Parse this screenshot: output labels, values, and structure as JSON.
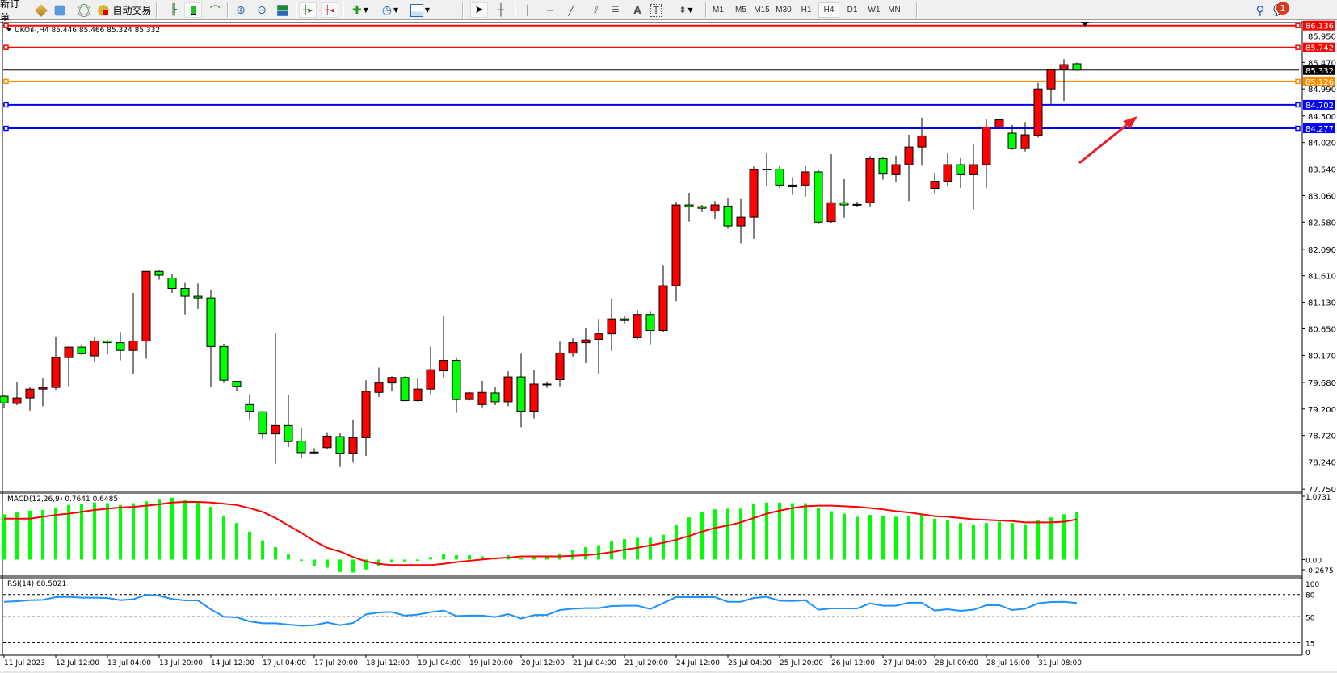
{
  "toolbar": {
    "new_order": "新订单",
    "auto_trading": "自动交易",
    "timeframes": [
      "M1",
      "M5",
      "M15",
      "M30",
      "H1",
      "H4",
      "D1",
      "W1",
      "MN"
    ],
    "active_timeframe": "H4",
    "notification_count": "1",
    "icons": [
      "market-watch-icon",
      "navigator-icon",
      "signals-icon",
      "auto-trading-icon",
      "bar-chart-icon",
      "candlestick-icon",
      "line-chart-icon",
      "zoom-in-icon",
      "zoom-out-icon",
      "tile-windows-icon",
      "auto-scroll-icon",
      "chart-shift-icon",
      "indicators-icon",
      "periods-icon",
      "templates-icon",
      "cursor-icon",
      "crosshair-icon",
      "vertical-line-icon",
      "horizontal-line-icon",
      "trendline-icon",
      "equidistant-channel-icon",
      "fibonacci-icon",
      "text-icon",
      "text-label-icon",
      "arrows-icon",
      "search-icon",
      "notification-icon"
    ]
  },
  "chart": {
    "symbol_header": "UKOil-,H4  85.446 85.466 85.324 85.332",
    "bull_color": "#ff0000",
    "bear_color": "#00ff00",
    "price_levels": [
      {
        "price": "86.136",
        "color": "#ff0000",
        "kind": "level"
      },
      {
        "price": "85.742",
        "color": "#ff0000",
        "kind": "level"
      },
      {
        "price": "85.332",
        "color": "#000000",
        "kind": "bid"
      },
      {
        "price": "85.126",
        "color": "#ff8c00",
        "kind": "level"
      },
      {
        "price": "84.702",
        "color": "#0000ff",
        "kind": "level"
      },
      {
        "price": "84.277",
        "color": "#0000ff",
        "kind": "level"
      }
    ],
    "arrow_color": "#e8202a"
  },
  "chart_data": [
    {
      "type": "candlestick",
      "title": "UKOil-,H4",
      "ohlc_last": {
        "open": 85.446,
        "high": 85.466,
        "low": 85.324,
        "close": 85.332
      },
      "y_ticks": [
        "85.950",
        "85.470",
        "84.990",
        "84.500",
        "84.020",
        "83.540",
        "83.060",
        "82.580",
        "82.090",
        "81.610",
        "81.130",
        "80.650",
        "80.170",
        "79.680",
        "79.200",
        "78.720",
        "78.240",
        "77.750"
      ],
      "ylim": [
        77.75,
        86.136
      ],
      "x_tick_labels": [
        "11 Jul 2023",
        "12 Jul 12:00",
        "13 Jul 04:00",
        "13 Jul 20:00",
        "14 Jul 12:00",
        "17 Jul 04:00",
        "17 Jul 20:00",
        "18 Jul 12:00",
        "19 Jul 04:00",
        "19 Jul 20:00",
        "20 Jul 12:00",
        "21 Jul 04:00",
        "21 Jul 20:00",
        "24 Jul 12:00",
        "25 Jul 04:00",
        "25 Jul 20:00",
        "26 Jul 12:00",
        "27 Jul 04:00",
        "28 Jul 00:00",
        "28 Jul 16:00",
        "31 Jul 08:00"
      ],
      "candles": [
        [
          79.43,
          79.45,
          79.22,
          79.31
        ],
        [
          79.3,
          79.68,
          79.27,
          79.4
        ],
        [
          79.4,
          79.59,
          79.17,
          79.56
        ],
        [
          79.56,
          79.75,
          79.25,
          79.59
        ],
        [
          79.59,
          80.5,
          79.55,
          80.13
        ],
        [
          80.13,
          80.33,
          79.61,
          80.32
        ],
        [
          80.32,
          80.35,
          80.18,
          80.2
        ],
        [
          80.16,
          80.5,
          80.05,
          80.43
        ],
        [
          80.43,
          80.45,
          80.19,
          80.4
        ],
        [
          80.4,
          80.58,
          80.08,
          80.26
        ],
        [
          80.26,
          81.3,
          79.84,
          80.43
        ],
        [
          80.43,
          81.7,
          80.11,
          81.69
        ],
        [
          81.69,
          81.71,
          81.54,
          81.62
        ],
        [
          81.57,
          81.65,
          81.3,
          81.38
        ],
        [
          81.38,
          81.48,
          80.91,
          81.24
        ],
        [
          81.24,
          81.47,
          81.01,
          81.21
        ],
        [
          81.21,
          81.36,
          79.6,
          80.33
        ],
        [
          80.33,
          80.38,
          79.67,
          79.72
        ],
        [
          79.7,
          79.7,
          79.52,
          79.61
        ],
        [
          79.28,
          79.47,
          79.01,
          79.16
        ],
        [
          79.15,
          79.16,
          78.66,
          78.75
        ],
        [
          78.75,
          80.57,
          78.21,
          78.9
        ],
        [
          78.9,
          79.45,
          78.51,
          78.61
        ],
        [
          78.62,
          78.86,
          78.32,
          78.41
        ],
        [
          78.42,
          78.49,
          78.38,
          78.42
        ],
        [
          78.5,
          78.78,
          78.48,
          78.71
        ],
        [
          78.7,
          78.77,
          78.15,
          78.4
        ],
        [
          78.4,
          79.01,
          78.23,
          78.68
        ],
        [
          78.68,
          79.72,
          78.35,
          79.52
        ],
        [
          79.5,
          79.95,
          79.42,
          79.67
        ],
        [
          79.67,
          79.79,
          79.53,
          79.77
        ],
        [
          79.77,
          79.79,
          79.34,
          79.35
        ],
        [
          79.35,
          79.75,
          79.33,
          79.56
        ],
        [
          79.56,
          80.33,
          79.47,
          79.91
        ],
        [
          79.89,
          80.89,
          79.77,
          80.08
        ],
        [
          80.08,
          80.12,
          79.13,
          79.37
        ],
        [
          79.37,
          79.51,
          79.35,
          79.49
        ],
        [
          79.28,
          79.71,
          79.23,
          79.5
        ],
        [
          79.49,
          79.59,
          79.27,
          79.33
        ],
        [
          79.33,
          79.88,
          79.25,
          79.78
        ],
        [
          79.78,
          80.2,
          78.87,
          79.16
        ],
        [
          79.16,
          79.9,
          79.03,
          79.65
        ],
        [
          79.64,
          79.7,
          79.58,
          79.65
        ],
        [
          79.73,
          80.42,
          79.61,
          80.21
        ],
        [
          80.21,
          80.48,
          80.15,
          80.4
        ],
        [
          80.4,
          80.66,
          80.03,
          80.45
        ],
        [
          80.46,
          80.83,
          79.83,
          80.56
        ],
        [
          80.56,
          81.2,
          80.25,
          80.83
        ],
        [
          80.83,
          80.89,
          80.75,
          80.8
        ],
        [
          80.49,
          80.99,
          80.46,
          80.91
        ],
        [
          80.91,
          80.96,
          80.37,
          80.62
        ],
        [
          80.62,
          81.79,
          80.6,
          81.43
        ],
        [
          81.43,
          82.95,
          81.15,
          82.89
        ],
        [
          82.89,
          83.11,
          82.59,
          82.86
        ],
        [
          82.86,
          82.89,
          82.76,
          82.83
        ],
        [
          82.78,
          82.96,
          82.63,
          82.89
        ],
        [
          82.87,
          83.02,
          82.46,
          82.51
        ],
        [
          82.51,
          83.01,
          82.2,
          82.67
        ],
        [
          82.67,
          83.59,
          82.28,
          83.53
        ],
        [
          83.54,
          83.83,
          83.23,
          83.54
        ],
        [
          83.54,
          83.59,
          83.2,
          83.25
        ],
        [
          83.22,
          83.39,
          83.07,
          83.25
        ],
        [
          83.25,
          83.59,
          83.04,
          83.49
        ],
        [
          83.49,
          83.52,
          82.54,
          82.58
        ],
        [
          82.59,
          83.81,
          82.57,
          82.93
        ],
        [
          82.93,
          83.36,
          82.66,
          82.89
        ],
        [
          82.9,
          82.95,
          82.85,
          82.9
        ],
        [
          82.93,
          83.78,
          82.85,
          83.73
        ],
        [
          83.73,
          83.76,
          83.35,
          83.45
        ],
        [
          83.44,
          83.78,
          83.3,
          83.62
        ],
        [
          83.62,
          84.16,
          82.96,
          83.94
        ],
        [
          83.94,
          84.47,
          83.6,
          84.14
        ],
        [
          83.19,
          83.46,
          83.1,
          83.32
        ],
        [
          83.32,
          83.84,
          83.22,
          83.62
        ],
        [
          83.62,
          83.74,
          83.2,
          83.44
        ],
        [
          83.44,
          84.0,
          82.81,
          83.62
        ],
        [
          83.62,
          84.45,
          83.2,
          84.3
        ],
        [
          84.3,
          84.45,
          84.28,
          84.43
        ],
        [
          84.19,
          84.34,
          83.89,
          83.91
        ],
        [
          83.91,
          84.39,
          83.86,
          84.16
        ],
        [
          84.15,
          85.1,
          84.11,
          84.99
        ],
        [
          84.99,
          85.36,
          84.72,
          85.34
        ],
        [
          85.34,
          85.53,
          84.77,
          85.43
        ],
        [
          85.446,
          85.466,
          85.324,
          85.332
        ]
      ]
    },
    {
      "type": "bar+line",
      "title": "MACD(12,26,9) 0.7641 0.6485",
      "y_ticks": [
        "1.0731",
        "0.00",
        "-0.2675"
      ],
      "ylim": [
        -0.2675,
        1.0731
      ],
      "macd": [
        0.73,
        0.76,
        0.79,
        0.8,
        0.84,
        0.88,
        0.9,
        0.92,
        0.91,
        0.88,
        0.91,
        0.94,
        0.98,
        1.0,
        0.97,
        0.92,
        0.85,
        0.71,
        0.59,
        0.45,
        0.31,
        0.2,
        0.08,
        -0.02,
        -0.11,
        -0.13,
        -0.2,
        -0.21,
        -0.16,
        -0.1,
        -0.05,
        -0.03,
        -0.02,
        0.04,
        0.09,
        0.07,
        0.07,
        0.05,
        0.02,
        0.07,
        0.02,
        0.05,
        0.05,
        0.1,
        0.16,
        0.2,
        0.23,
        0.29,
        0.33,
        0.35,
        0.35,
        0.4,
        0.56,
        0.68,
        0.76,
        0.81,
        0.82,
        0.82,
        0.89,
        0.92,
        0.92,
        0.91,
        0.91,
        0.83,
        0.78,
        0.74,
        0.69,
        0.72,
        0.7,
        0.69,
        0.7,
        0.72,
        0.66,
        0.64,
        0.59,
        0.56,
        0.59,
        0.61,
        0.59,
        0.57,
        0.63,
        0.68,
        0.73,
        0.7641
      ],
      "signal": [
        0.66,
        0.66,
        0.66,
        0.69,
        0.72,
        0.74,
        0.77,
        0.8,
        0.82,
        0.84,
        0.85,
        0.87,
        0.89,
        0.92,
        0.93,
        0.93,
        0.92,
        0.9,
        0.88,
        0.83,
        0.77,
        0.67,
        0.55,
        0.43,
        0.3,
        0.19,
        0.13,
        0.04,
        -0.03,
        -0.07,
        -0.09,
        -0.09,
        -0.09,
        -0.09,
        -0.07,
        -0.04,
        -0.02,
        0.0,
        0.02,
        0.03,
        0.05,
        0.05,
        0.05,
        0.05,
        0.06,
        0.07,
        0.09,
        0.12,
        0.16,
        0.19,
        0.23,
        0.27,
        0.32,
        0.38,
        0.45,
        0.51,
        0.55,
        0.6,
        0.67,
        0.74,
        0.79,
        0.83,
        0.86,
        0.87,
        0.87,
        0.86,
        0.85,
        0.83,
        0.81,
        0.78,
        0.76,
        0.73,
        0.7,
        0.69,
        0.67,
        0.65,
        0.64,
        0.63,
        0.62,
        0.6,
        0.6,
        0.6,
        0.61,
        0.6485
      ],
      "bar_color": "#00ff00",
      "line_color": "#ff0000"
    },
    {
      "type": "line",
      "title": "RSI(14) 68.5021",
      "y_ticks": [
        "100",
        "80",
        "50",
        "15",
        "0"
      ],
      "ylim": [
        0,
        100
      ],
      "levels": [
        80,
        50,
        15
      ],
      "line_color": "#1e90ff",
      "values": [
        70.2,
        71.0,
        72.4,
        72.8,
        76.4,
        76.8,
        75.7,
        75.7,
        75.3,
        72.4,
        73.5,
        79.7,
        78.3,
        74.0,
        72.0,
        72.0,
        60.0,
        50.0,
        49.3,
        43.8,
        41.2,
        41.2,
        39.4,
        38.0,
        38.6,
        42.3,
        38.7,
        41.6,
        53.2,
        55.8,
        56.5,
        51.5,
        52.9,
        56.1,
        58.3,
        51.0,
        51.5,
        51.5,
        49.6,
        53.6,
        47.5,
        52.2,
        52.5,
        59.0,
        60.8,
        61.6,
        61.6,
        64.5,
        64.9,
        64.9,
        60.5,
        68.5,
        76.4,
        76.4,
        76.4,
        76.4,
        70.2,
        70.2,
        75.3,
        76.8,
        71.7,
        71.3,
        72.4,
        59.4,
        61.2,
        61.2,
        61.2,
        68.1,
        64.9,
        64.9,
        68.9,
        68.9,
        58.3,
        60.1,
        57.9,
        59.4,
        65.6,
        65.6,
        59.0,
        60.8,
        68.1,
        69.9,
        70.2,
        68.5021
      ]
    }
  ]
}
